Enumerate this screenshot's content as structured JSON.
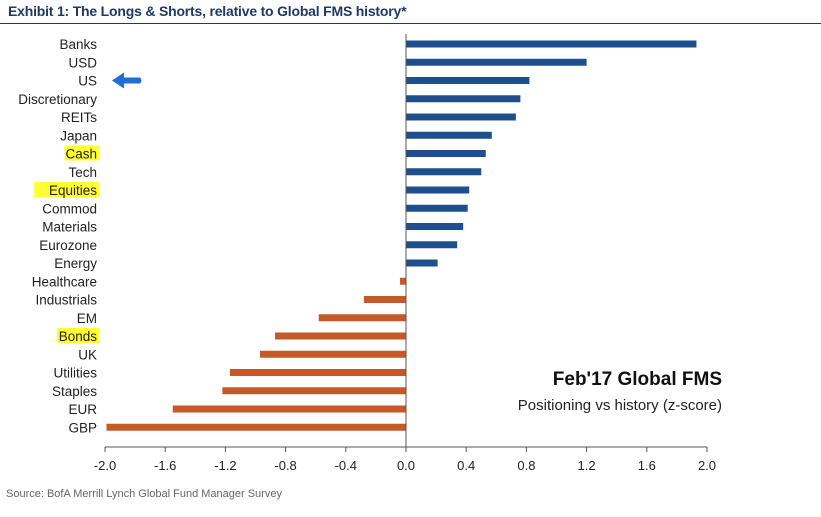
{
  "title": "Exhibit 1: The Longs & Shorts, relative to Global FMS history*",
  "source": "Source: BofA Merrill Lynch Global Fund Manager Survey",
  "colors": {
    "positive": "#1f4e8c",
    "negative": "#c55a28",
    "highlight": "#ffff33",
    "arrow": "#1f6fd6",
    "axis": "#555555"
  },
  "icons": {
    "pointer": "arrow-left-icon"
  },
  "chart_data": {
    "type": "bar",
    "orientation": "horizontal",
    "categories": [
      "Banks",
      "USD",
      "US",
      "Discretionary",
      "REITs",
      "Japan",
      "Cash",
      "Tech",
      "Equities",
      "Commod",
      "Materials",
      "Eurozone",
      "Energy",
      "Healthcare",
      "Industrials",
      "EM",
      "Bonds",
      "UK",
      "Utilities",
      "Staples",
      "EUR",
      "GBP"
    ],
    "values": [
      1.93,
      1.2,
      0.82,
      0.76,
      0.73,
      0.57,
      0.53,
      0.5,
      0.42,
      0.41,
      0.38,
      0.34,
      0.21,
      -0.04,
      -0.28,
      -0.58,
      -0.87,
      -0.97,
      -1.17,
      -1.22,
      -1.55,
      -1.99
    ],
    "highlighted": [
      "Cash",
      "Equities",
      "Bonds"
    ],
    "pointer_category": "US",
    "xlim": [
      -2.0,
      2.0
    ],
    "xticks": [
      "-2.0",
      "-1.6",
      "-1.2",
      "-0.8",
      "-0.4",
      "0.0",
      "0.4",
      "0.8",
      "1.2",
      "1.6",
      "2.0"
    ],
    "annotation_title": "Feb'17 Global FMS",
    "annotation_subtitle": "Positioning vs history (z-score)",
    "xlabel": "",
    "ylabel": ""
  }
}
